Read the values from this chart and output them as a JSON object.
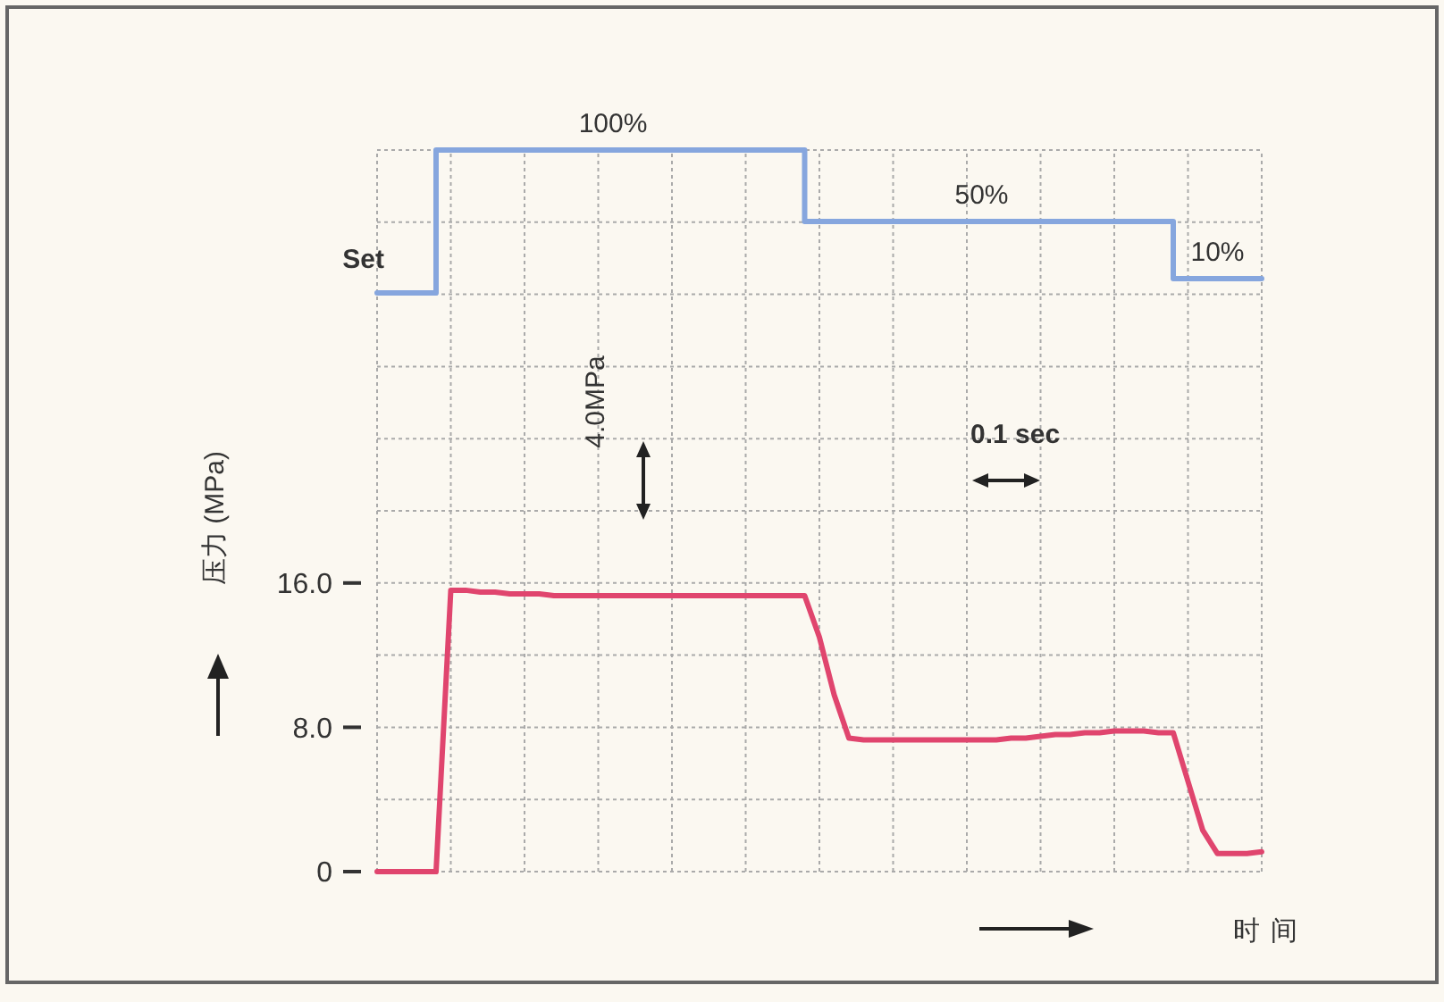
{
  "chart_data": [
    {
      "type": "step",
      "tick_labels": false,
      "categories": [
        null,
        null,
        null,
        null,
        null,
        null,
        null,
        null,
        null,
        null,
        null,
        null,
        null,
        null,
        null,
        null,
        null,
        null,
        null,
        null,
        null,
        null,
        null,
        null,
        null,
        null,
        null,
        null,
        null,
        null,
        null,
        null,
        null,
        null,
        null,
        null,
        null,
        null,
        null,
        null,
        null,
        null,
        null,
        null,
        null,
        null,
        null,
        null,
        null,
        null,
        null,
        null,
        null,
        null,
        null,
        null,
        null,
        null,
        null,
        null,
        null
      ],
      "series": [
        {
          "name": "Set",
          "color": "#86a6de",
          "values": [
            0,
            0,
            0,
            0,
            100,
            100,
            100,
            100,
            100,
            100,
            100,
            100,
            100,
            100,
            100,
            100,
            100,
            100,
            100,
            100,
            100,
            100,
            100,
            100,
            100,
            100,
            100,
            100,
            100,
            50,
            50,
            50,
            50,
            50,
            50,
            50,
            50,
            50,
            50,
            50,
            50,
            50,
            50,
            50,
            50,
            50,
            50,
            50,
            50,
            50,
            50,
            50,
            50,
            50,
            10,
            10,
            10,
            10,
            10,
            10,
            10
          ],
          "value_labels": [
            null,
            null,
            null,
            null,
            null,
            null,
            null,
            null,
            null,
            null,
            null,
            null,
            null,
            null,
            null,
            null,
            "100%",
            null,
            null,
            null,
            null,
            null,
            null,
            null,
            null,
            null,
            null,
            null,
            null,
            null,
            null,
            null,
            null,
            null,
            null,
            null,
            null,
            null,
            null,
            null,
            null,
            "50%",
            null,
            null,
            null,
            null,
            null,
            null,
            null,
            null,
            null,
            null,
            null,
            null,
            null,
            null,
            null,
            "10%",
            null,
            null,
            null
          ]
        }
      ]
    },
    {
      "type": "line",
      "xlabel": "时间",
      "ylabel": "压力 (MPa)",
      "categories": [
        null,
        null,
        null,
        null,
        null,
        null,
        null,
        null,
        null,
        null,
        null,
        null,
        null,
        null,
        null,
        null,
        null,
        null,
        null,
        null,
        null,
        null,
        null,
        null,
        null,
        null,
        null,
        null,
        null,
        null,
        null,
        null,
        null,
        null,
        null,
        null,
        null,
        null,
        null,
        null,
        null,
        null,
        null,
        null,
        null,
        null,
        null,
        null,
        null,
        null,
        null,
        null,
        null,
        null,
        null,
        null,
        null,
        null,
        null,
        null,
        null
      ],
      "ylim": [
        0,
        40
      ],
      "yticks": [
        0,
        {
          "value": 4,
          "label": null
        },
        {
          "value": 8,
          "label": "8.0"
        },
        {
          "value": 12,
          "label": null
        },
        {
          "value": 16,
          "label": "16.0"
        },
        {
          "value": 20,
          "label": null
        },
        {
          "value": 24,
          "label": null
        },
        {
          "value": 28,
          "label": null
        },
        {
          "value": 32,
          "label": null
        },
        {
          "value": 36,
          "label": null
        },
        {
          "value": 40,
          "label": null
        }
      ],
      "tick_labels": "y",
      "grid": true,
      "annotations": [
        "4.0MPa",
        "0.1 sec"
      ],
      "series": [
        {
          "color": "#e0456e",
          "values": [
            0,
            0,
            0,
            0,
            0,
            15.6,
            15.6,
            15.5,
            15.5,
            15.4,
            15.4,
            15.4,
            15.3,
            15.3,
            15.3,
            15.3,
            15.3,
            15.3,
            15.3,
            15.3,
            15.3,
            15.3,
            15.3,
            15.3,
            15.3,
            15.3,
            15.3,
            15.3,
            15.3,
            15.3,
            13.0,
            9.8,
            7.4,
            7.3,
            7.3,
            7.3,
            7.3,
            7.3,
            7.3,
            7.3,
            7.3,
            7.3,
            7.3,
            7.4,
            7.4,
            7.5,
            7.6,
            7.6,
            7.7,
            7.7,
            7.8,
            7.8,
            7.8,
            7.7,
            7.7,
            5.0,
            2.3,
            1.0,
            1.0,
            1.0,
            1.1
          ]
        }
      ]
    }
  ]
}
